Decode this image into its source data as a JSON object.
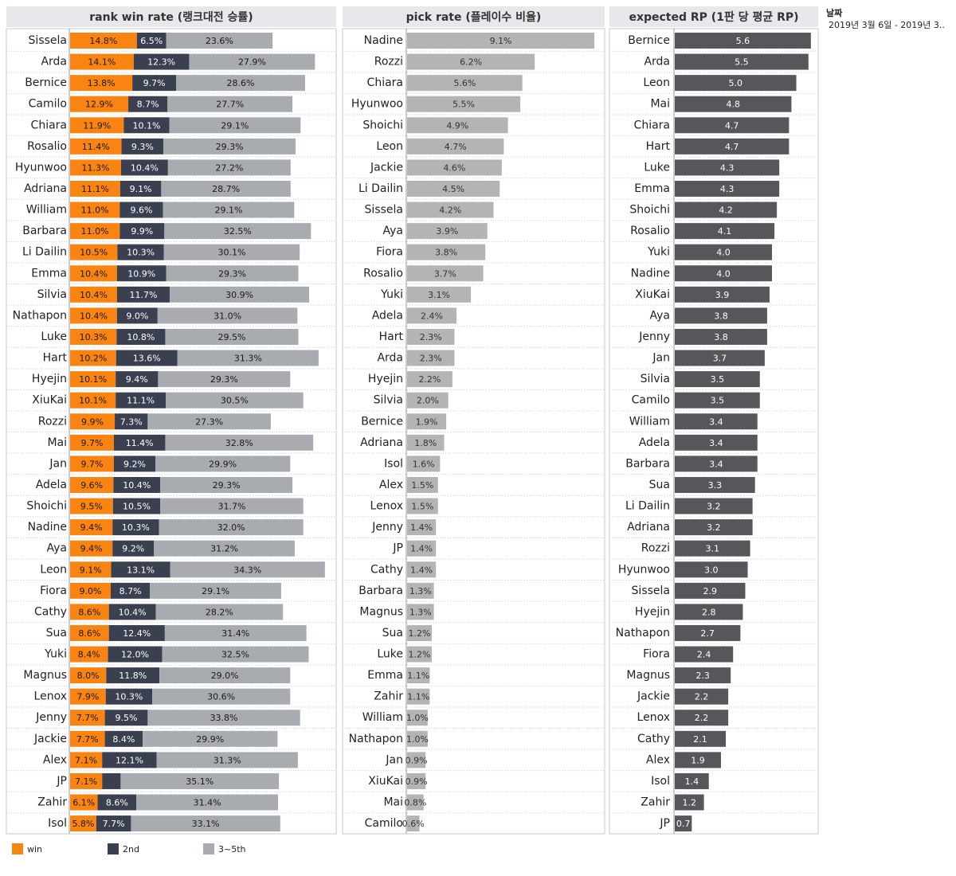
{
  "chart_data": [
    {
      "type": "stacked_bar",
      "title": "rank win rate (랭크대전 승률)",
      "categories": [
        "Sissela",
        "Arda",
        "Bernice",
        "Camilo",
        "Chiara",
        "Rosalio",
        "Hyunwoo",
        "Adriana",
        "William",
        "Barbara",
        "Li Dailin",
        "Emma",
        "Silvia",
        "Nathapon",
        "Luke",
        "Hart",
        "Hyejin",
        "XiuKai",
        "Rozzi",
        "Mai",
        "Jan",
        "Adela",
        "Shoichi",
        "Nadine",
        "Aya",
        "Leon",
        "Fiora",
        "Cathy",
        "Sua",
        "Yuki",
        "Magnus",
        "Lenox",
        "Jenny",
        "Jackie",
        "Alex",
        "JP",
        "Zahir",
        "Isol"
      ],
      "xlim": [
        0,
        59
      ],
      "legend": "bottom",
      "series": [
        {
          "name": "win",
          "color": "#f98412",
          "values": [
            14.8,
            14.1,
            13.8,
            12.9,
            11.9,
            11.4,
            11.3,
            11.1,
            11,
            11,
            10.5,
            10.4,
            10.4,
            10.4,
            10.3,
            10.2,
            10.1,
            10.1,
            9.9,
            9.7,
            9.7,
            9.6,
            9.5,
            9.4,
            9.4,
            9.1,
            9,
            8.6,
            8.6,
            8.4,
            8,
            7.9,
            7.7,
            7.7,
            7.1,
            7.1,
            6.1,
            5.8
          ],
          "value_labels": [
            "14.8%",
            "14.1%",
            "13.8%",
            "12.9%",
            "11.9%",
            "11.4%",
            "11.3%",
            "11.1%",
            "11.0%",
            "11.0%",
            "10.5%",
            "10.4%",
            "10.4%",
            "10.4%",
            "10.3%",
            "10.2%",
            "10.1%",
            "10.1%",
            "9.9%",
            "9.7%",
            "9.7%",
            "9.6%",
            "9.5%",
            "9.4%",
            "9.4%",
            "9.1%",
            "9.0%",
            "8.6%",
            "8.6%",
            "8.4%",
            "8.0%",
            "7.9%",
            "7.7%",
            "7.7%",
            "7.1%",
            "7.1%",
            "6.1%",
            "5.8%"
          ]
        },
        {
          "name": "2nd",
          "color": "#3b4050",
          "values": [
            6.5,
            12.3,
            9.7,
            8.7,
            10.1,
            9.3,
            10.4,
            9.1,
            9.6,
            9.9,
            10.3,
            10.9,
            11.7,
            9,
            10.8,
            13.6,
            9.4,
            11.1,
            7.3,
            11.4,
            9.2,
            10.4,
            10.5,
            10.3,
            9.2,
            13.1,
            8.7,
            10.4,
            12.4,
            12,
            11.8,
            10.3,
            9.5,
            8.4,
            12.1,
            4.1,
            8.6,
            7.7
          ],
          "value_labels": [
            "6.5%",
            "12.3%",
            "9.7%",
            "8.7%",
            "10.1%",
            "9.3%",
            "10.4%",
            "9.1%",
            "9.6%",
            "9.9%",
            "10.3%",
            "10.9%",
            "11.7%",
            "9.0%",
            "10.8%",
            "13.6%",
            "9.4%",
            "11.1%",
            "7.3%",
            "11.4%",
            "9.2%",
            "10.4%",
            "10.5%",
            "10.3%",
            "9.2%",
            "13.1%",
            "8.7%",
            "10.4%",
            "12.4%",
            "12.0%",
            "11.8%",
            "10.3%",
            "9.5%",
            "8.4%",
            "12.1%",
            null,
            "8.6%",
            "7.7%"
          ]
        },
        {
          "name": "3~5th",
          "color": "#a8abb0",
          "values": [
            23.6,
            27.9,
            28.6,
            27.7,
            29.1,
            29.3,
            27.2,
            28.7,
            29.1,
            32.5,
            30.1,
            29.3,
            30.9,
            31,
            29.5,
            31.3,
            29.3,
            30.5,
            27.3,
            32.8,
            29.9,
            29.3,
            31.7,
            32,
            31.2,
            34.3,
            29.1,
            28.2,
            31.4,
            32.5,
            29,
            30.6,
            33.8,
            29.9,
            31.3,
            35.1,
            31.4,
            33.1
          ],
          "value_labels": [
            "23.6%",
            "27.9%",
            "28.6%",
            "27.7%",
            "29.1%",
            "29.3%",
            "27.2%",
            "28.7%",
            "29.1%",
            "32.5%",
            "30.1%",
            "29.3%",
            "30.9%",
            "31.0%",
            "29.5%",
            "31.3%",
            "29.3%",
            "30.5%",
            "27.3%",
            "32.8%",
            "29.9%",
            "29.3%",
            "31.7%",
            "32.0%",
            "31.2%",
            "34.3%",
            "29.1%",
            "28.2%",
            "31.4%",
            "32.5%",
            "29.0%",
            "30.6%",
            "33.8%",
            "29.9%",
            "31.3%",
            "35.1%",
            "31.4%",
            "33.1%"
          ]
        }
      ]
    },
    {
      "type": "bar",
      "title": "pick rate (플레이수 비율)",
      "categories": [
        "Nadine",
        "Rozzi",
        "Chiara",
        "Hyunwoo",
        "Shoichi",
        "Leon",
        "Jackie",
        "Li Dailin",
        "Sissela",
        "Aya",
        "Fiora",
        "Rosalio",
        "Yuki",
        "Adela",
        "Hart",
        "Arda",
        "Hyejin",
        "Silvia",
        "Bernice",
        "Adriana",
        "Isol",
        "Alex",
        "Lenox",
        "Jenny",
        "JP",
        "Cathy",
        "Barbara",
        "Magnus",
        "Sua",
        "Luke",
        "Emma",
        "Zahir",
        "William",
        "Nathapon",
        "Jan",
        "XiuKai",
        "Mai",
        "Camilo"
      ],
      "xlim": [
        0,
        9.6
      ],
      "color": "#b4b4b4",
      "values": [
        9.1,
        6.2,
        5.6,
        5.5,
        4.9,
        4.7,
        4.6,
        4.5,
        4.2,
        3.9,
        3.8,
        3.7,
        3.1,
        2.4,
        2.3,
        2.3,
        2.2,
        2,
        1.9,
        1.8,
        1.6,
        1.5,
        1.5,
        1.4,
        1.4,
        1.4,
        1.3,
        1.3,
        1.2,
        1.2,
        1.1,
        1.1,
        1,
        1,
        0.9,
        0.9,
        0.8,
        0.6
      ],
      "value_labels": [
        "9.1%",
        "6.2%",
        "5.6%",
        "5.5%",
        "4.9%",
        "4.7%",
        "4.6%",
        "4.5%",
        "4.2%",
        "3.9%",
        "3.8%",
        "3.7%",
        "3.1%",
        "2.4%",
        "2.3%",
        "2.3%",
        "2.2%",
        "2.0%",
        "1.9%",
        "1.8%",
        "1.6%",
        "1.5%",
        "1.5%",
        "1.4%",
        "1.4%",
        "1.4%",
        "1.3%",
        "1.3%",
        "1.2%",
        "1.2%",
        "1.1%",
        "1.1%",
        "1.0%",
        "1.0%",
        "0.9%",
        "0.9%",
        "0.8%",
        "0.6%"
      ]
    },
    {
      "type": "bar",
      "title": "expected RP (1판 당 평균 RP)",
      "categories": [
        "Bernice",
        "Arda",
        "Leon",
        "Mai",
        "Chiara",
        "Hart",
        "Luke",
        "Emma",
        "Shoichi",
        "Rosalio",
        "Yuki",
        "Nadine",
        "XiuKai",
        "Aya",
        "Jenny",
        "Jan",
        "Silvia",
        "Camilo",
        "William",
        "Adela",
        "Barbara",
        "Sua",
        "Li Dailin",
        "Adriana",
        "Rozzi",
        "Hyunwoo",
        "Sissela",
        "Hyejin",
        "Nathapon",
        "Fiora",
        "Magnus",
        "Jackie",
        "Lenox",
        "Cathy",
        "Alex",
        "Isol",
        "Zahir",
        "JP"
      ],
      "xlim": [
        0,
        5.9
      ],
      "color": "#57575b",
      "values": [
        5.6,
        5.5,
        5,
        4.8,
        4.7,
        4.7,
        4.3,
        4.3,
        4.2,
        4.1,
        4,
        4,
        3.9,
        3.8,
        3.8,
        3.7,
        3.5,
        3.5,
        3.4,
        3.4,
        3.4,
        3.3,
        3.2,
        3.2,
        3.1,
        3,
        2.9,
        2.8,
        2.7,
        2.4,
        2.3,
        2.2,
        2.2,
        2.1,
        1.9,
        1.4,
        1.2,
        0.7
      ],
      "value_labels": [
        "5.6",
        "5.5",
        "5.0",
        "4.8",
        "4.7",
        "4.7",
        "4.3",
        "4.3",
        "4.2",
        "4.1",
        "4.0",
        "4.0",
        "3.9",
        "3.8",
        "3.8",
        "3.7",
        "3.5",
        "3.5",
        "3.4",
        "3.4",
        "3.4",
        "3.3",
        "3.2",
        "3.2",
        "3.1",
        "3.0",
        "2.9",
        "2.8",
        "2.7",
        "2.4",
        "2.3",
        "2.2",
        "2.2",
        "2.1",
        "1.9",
        "1.4",
        "1.2",
        "0.7"
      ]
    }
  ],
  "date_filter": {
    "label": "날짜",
    "value": "2019년 3월 6일 - 2019년 3.."
  }
}
